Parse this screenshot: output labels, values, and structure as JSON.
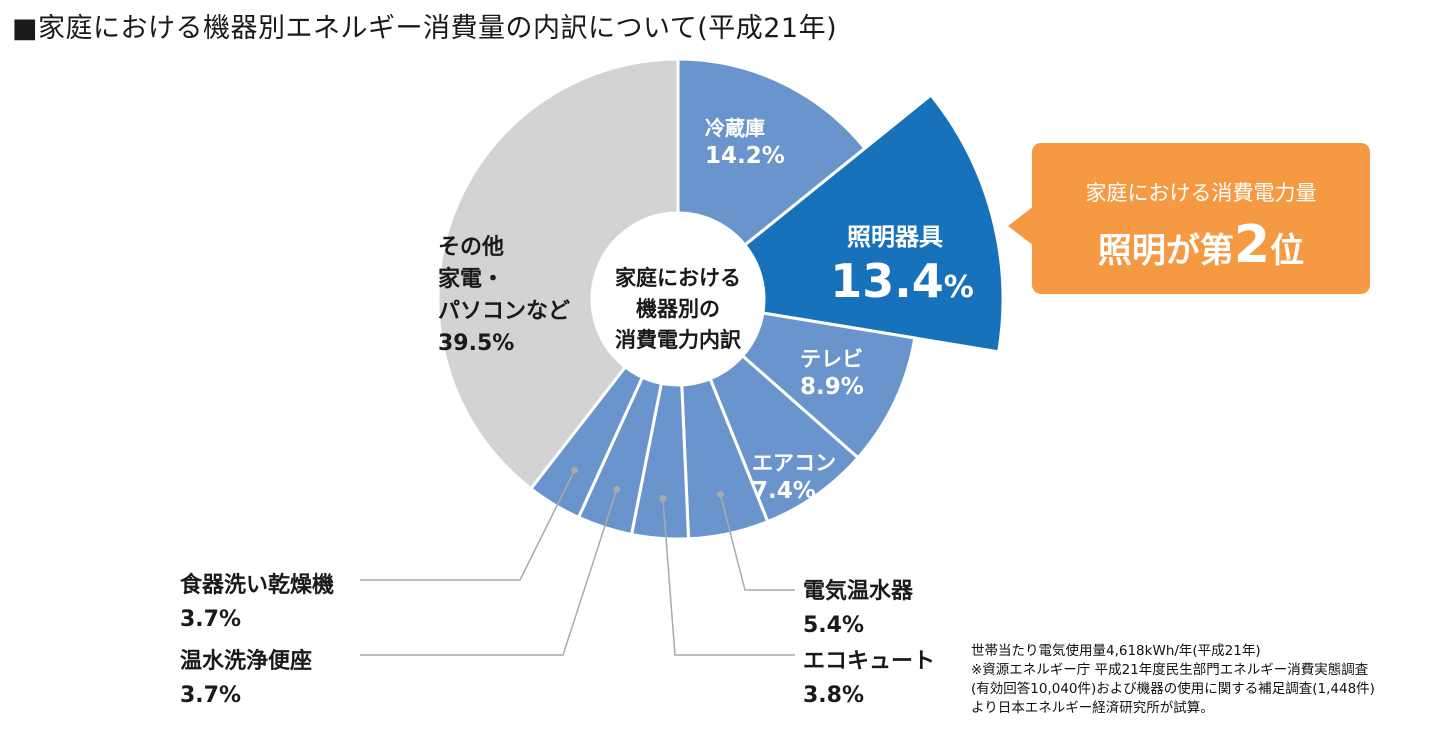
{
  "title": "■家庭における機器別エネルギー消費量の内訳について(平成21年)",
  "center_label": [
    "家庭における",
    "機器別の",
    "消費電力内訳"
  ],
  "callout": {
    "line1": "家庭における消費電力量",
    "line2_prefix": "照明が第",
    "line2_rank": "2",
    "line2_suffix": "位"
  },
  "note": [
    "世帯当たり電気使用量4,618kWh/年(平成21年)",
    "※資源エネルギー庁 平成21年度民生部門エネルギー消費実態調査",
    "(有効回答10,040件)および機器の使用に関する補足調査(1,448件)",
    "より日本エネルギー経済研究所が試算。"
  ],
  "colors": {
    "slice": "#6a95cc",
    "highlight": "#1872bb",
    "other": "#d3d3d3",
    "callout": "#f59a43",
    "leader": "#aaaaaa"
  },
  "chart_data": {
    "type": "pie",
    "style": "donut",
    "slices": [
      {
        "label": "冷蔵庫",
        "value": 14.2,
        "display": "14.2%"
      },
      {
        "label": "照明器具",
        "value": 13.4,
        "display": "13.4%",
        "highlight": true
      },
      {
        "label": "テレビ",
        "value": 8.9,
        "display": "8.9%"
      },
      {
        "label": "エアコン",
        "value": 7.4,
        "display": "7.4%"
      },
      {
        "label": "電気温水器",
        "value": 5.4,
        "display": "5.4%",
        "outside": true
      },
      {
        "label": "エコキュート",
        "value": 3.8,
        "display": "3.8%",
        "outside": true
      },
      {
        "label": "温水洗浄便座",
        "value": 3.7,
        "display": "3.7%",
        "outside": true
      },
      {
        "label": "食器洗い乾燥機",
        "value": 3.7,
        "display": "3.7%",
        "outside": true
      },
      {
        "label": [
          "その他",
          "家電・",
          "パソコンなど"
        ],
        "value": 39.5,
        "display": "39.5%",
        "other": true
      }
    ]
  }
}
